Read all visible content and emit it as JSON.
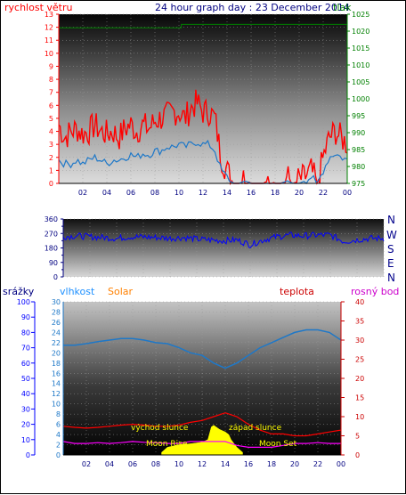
{
  "header": {
    "wind_label": "rychlost větru",
    "title": "24 hour graph day : 23 December 2014",
    "pressure_label": "tlak"
  },
  "colors": {
    "wind": "#ff0000",
    "gust_avg": "#1e78c8",
    "pressure": "#008000",
    "direction": "#0000ff",
    "humidity": "#1e78c8",
    "temperature": "#ff0000",
    "dewpoint": "#ff00ff",
    "solar": "#ffff00",
    "rain": "#0000ff",
    "solar_label": "#ff8000",
    "title": "#000080"
  },
  "panel3_labels": {
    "rain": "srážky",
    "humidity": "vlhkost",
    "solar": "Solar",
    "temperature": "teplota",
    "dewpoint": "rosný bod"
  },
  "compass": [
    "N",
    "W",
    "S",
    "E",
    "N"
  ],
  "annotations": {
    "sunrise": "východ slunce",
    "sunset": "západ slunce",
    "moonrise": "Moon Rise",
    "moonset": "Moon Set"
  },
  "chart_data": [
    {
      "type": "line",
      "name": "wind",
      "x_ticks": [
        "02",
        "04",
        "06",
        "08",
        "10",
        "12",
        "14",
        "16",
        "18",
        "20",
        "22",
        "00"
      ],
      "xlim_hours": [
        0,
        24
      ],
      "ylim_left": [
        0,
        13
      ],
      "ylim_right": [
        975,
        1025
      ],
      "yticks_left": [
        0,
        1,
        2,
        3,
        4,
        5,
        6,
        7,
        8,
        9,
        10,
        11,
        12,
        13
      ],
      "yticks_right": [
        975,
        980,
        985,
        990,
        995,
        1000,
        1005,
        1010,
        1015,
        1020,
        1025
      ],
      "series": [
        {
          "axis": "left",
          "x": [
            0,
            0.5,
            1,
            1.5,
            2,
            2.5,
            3,
            3.5,
            4,
            4.5,
            5,
            5.5,
            6,
            6.5,
            7,
            7.5,
            8,
            8.5,
            9,
            9.5,
            10,
            10.5,
            11,
            11.5,
            12,
            12.5,
            13,
            13.5,
            14,
            14.5,
            15,
            15.5,
            16,
            16.5,
            17,
            17.5,
            18,
            18.5,
            19,
            19.5,
            20,
            20.5,
            21,
            21.5,
            22,
            22.5,
            23,
            23.5,
            24
          ],
          "values": [
            4.5,
            3.5,
            4.0,
            4.2,
            3.8,
            4.0,
            4.5,
            4.0,
            3.8,
            4.0,
            3.5,
            4.2,
            4.5,
            4.0,
            4.5,
            4.2,
            4.8,
            5.0,
            5.2,
            5.5,
            5.5,
            5.0,
            5.8,
            6.2,
            5.5,
            5.5,
            5.0,
            2.0,
            1.0,
            0,
            0,
            0.5,
            0,
            0,
            0,
            0.3,
            0,
            0,
            0.5,
            0,
            0.3,
            0.5,
            1.0,
            0,
            2.0,
            3.5,
            4.0,
            3.5,
            3.0
          ]
        },
        {
          "axis": "left",
          "x": [
            0,
            0.5,
            1,
            1.5,
            2,
            2.5,
            3,
            3.5,
            4,
            4.5,
            5,
            5.5,
            6,
            6.5,
            7,
            7.5,
            8,
            8.5,
            9,
            9.5,
            10,
            10.5,
            11,
            11.5,
            12,
            12.5,
            13,
            13.5,
            14,
            14.5,
            15,
            15.5,
            16,
            16.5,
            17,
            17.5,
            18,
            18.5,
            19,
            19.5,
            20,
            20.5,
            21,
            21.5,
            22,
            22.5,
            23,
            23.5,
            24
          ],
          "values": [
            1.8,
            1.5,
            1.5,
            1.8,
            1.5,
            1.8,
            2.0,
            1.8,
            1.5,
            1.8,
            1.8,
            2.0,
            2.2,
            2.0,
            2.3,
            2.2,
            2.5,
            2.5,
            2.8,
            2.8,
            3.0,
            2.8,
            3.0,
            3.2,
            3.0,
            3.0,
            2.5,
            1.0,
            0.5,
            0,
            0,
            0.2,
            0,
            0,
            0,
            0,
            0,
            0,
            0.2,
            0,
            0,
            0.2,
            0.5,
            0,
            1.0,
            2.0,
            2.3,
            2.0,
            1.8
          ]
        },
        {
          "axis": "right",
          "x": [
            0,
            1,
            2,
            3,
            4,
            5,
            6,
            7,
            8,
            9,
            10,
            10.2,
            11,
            12,
            13,
            14,
            15,
            16,
            17,
            18,
            19,
            20,
            21,
            22,
            23,
            24
          ],
          "values": [
            1021,
            1021,
            1021,
            1021,
            1021,
            1021,
            1021,
            1021,
            1021,
            1021,
            1021,
            1022,
            1022,
            1022,
            1022,
            1022,
            1022,
            1022,
            1022,
            1022,
            1022,
            1022,
            1022,
            1022,
            1022,
            1022
          ]
        }
      ]
    },
    {
      "type": "line",
      "name": "wind_direction",
      "x_ticks": [
        "02",
        "04",
        "06",
        "08",
        "10",
        "12",
        "14",
        "16",
        "18",
        "20",
        "22",
        "00"
      ],
      "ylim": [
        0,
        360
      ],
      "yticks": [
        0,
        90,
        180,
        270,
        360
      ],
      "ytick_labels": [
        "0",
        "90",
        "180",
        "270",
        "360"
      ],
      "minor_yticks": [
        45,
        135,
        225,
        315
      ],
      "series": [
        {
          "x": [
            0,
            1,
            2,
            3,
            4,
            5,
            6,
            7,
            8,
            9,
            10,
            11,
            12,
            13,
            14,
            15,
            16,
            17,
            18,
            19,
            20,
            21,
            22,
            23,
            24
          ],
          "values": [
            250,
            255,
            250,
            245,
            240,
            250,
            248,
            245,
            240,
            245,
            235,
            230,
            225,
            230,
            200,
            230,
            250,
            260,
            255,
            260,
            260,
            220,
            230,
            240,
            240
          ]
        }
      ]
    },
    {
      "type": "line",
      "name": "humidity_temperature",
      "x_ticks": [
        "02",
        "04",
        "06",
        "08",
        "10",
        "12",
        "14",
        "16",
        "18",
        "20",
        "22",
        "00"
      ],
      "ylim_rain": [
        0,
        100
      ],
      "yticks_rain": [
        0,
        10,
        20,
        30,
        40,
        50,
        60,
        70,
        80,
        90,
        100
      ],
      "ylim_humidity": [
        0,
        30
      ],
      "yticks_humidity": [
        0,
        2,
        4,
        6,
        8,
        10,
        12,
        14,
        16,
        18,
        20,
        22,
        24,
        26,
        28,
        30
      ],
      "ylim_temperature": [
        0,
        40
      ],
      "yticks_temperature": [
        0,
        5,
        10,
        15,
        20,
        25,
        30,
        35,
        40
      ],
      "series": [
        {
          "axis": "humidity",
          "x": [
            0,
            1,
            2,
            3,
            4,
            5,
            6,
            7,
            8,
            9,
            10,
            11,
            12,
            13,
            14,
            15,
            16,
            17,
            18,
            19,
            20,
            21,
            22,
            23,
            24
          ],
          "values": [
            21.5,
            21.5,
            21.8,
            22.2,
            22.5,
            22.8,
            22.8,
            22.5,
            22.0,
            21.8,
            21.0,
            20.0,
            19.5,
            18.0,
            17.0,
            18.0,
            19.5,
            21.0,
            22.0,
            23.0,
            24.0,
            24.5,
            24.5,
            24.0,
            22.5
          ]
        },
        {
          "axis": "temperature",
          "x": [
            0,
            1,
            2,
            3,
            4,
            5,
            6,
            7,
            8,
            9,
            10,
            11,
            12,
            13,
            14,
            15,
            16,
            17,
            18,
            19,
            20,
            21,
            22,
            23,
            24
          ],
          "values": [
            7.5,
            7.2,
            7.0,
            7.2,
            7.5,
            7.8,
            8.0,
            7.8,
            7.5,
            7.5,
            7.8,
            8.5,
            9.0,
            10.0,
            11.0,
            10.0,
            8.0,
            6.5,
            5.5,
            5.5,
            5.0,
            5.0,
            5.5,
            6.0,
            6.5
          ]
        },
        {
          "axis": "temperature",
          "x": [
            0,
            1,
            2,
            3,
            4,
            5,
            6,
            7,
            8,
            9,
            10,
            11,
            12,
            13,
            14,
            15,
            16,
            17,
            18,
            19,
            20,
            21,
            22,
            23,
            24
          ],
          "values": [
            3.5,
            3.0,
            3.0,
            3.2,
            3.0,
            3.2,
            3.5,
            3.3,
            3.2,
            3.0,
            3.0,
            3.5,
            3.5,
            3.5,
            3.5,
            2.5,
            2.0,
            2.0,
            2.0,
            2.5,
            3.0,
            3.0,
            3.2,
            3.0,
            3.0
          ]
        },
        {
          "axis": "humidity",
          "type": "area",
          "x": [
            8.5,
            9,
            10,
            11,
            12,
            12.5,
            12.8,
            13,
            13.2,
            13.5,
            14,
            14.3,
            14.5,
            15,
            15.5
          ],
          "values": [
            0.5,
            1.5,
            2.0,
            2.2,
            2.5,
            3.0,
            5.5,
            5.8,
            5.5,
            5.0,
            4.5,
            4.0,
            3.0,
            1.5,
            0.5
          ]
        }
      ]
    }
  ]
}
